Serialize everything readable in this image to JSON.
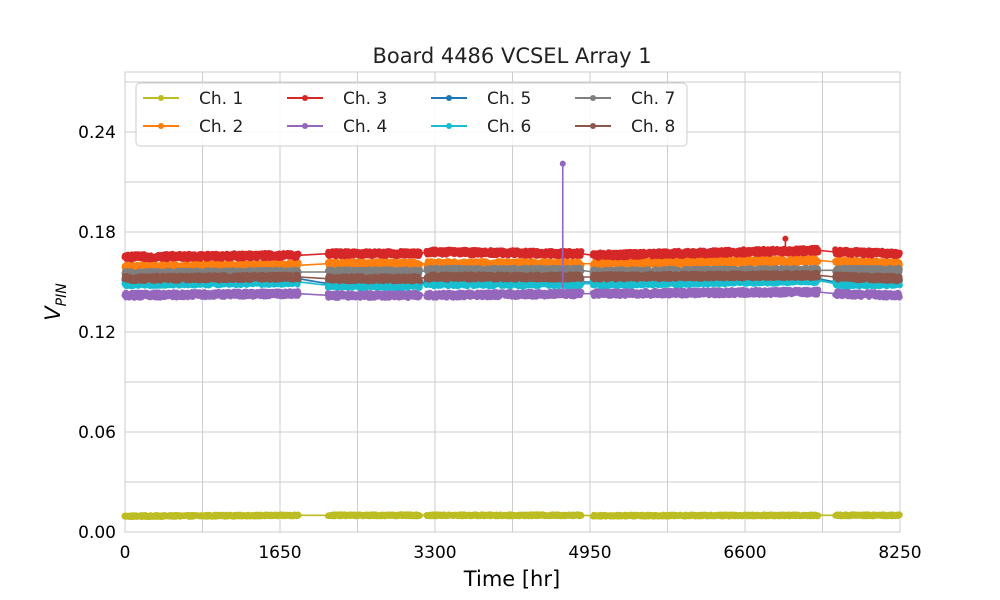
{
  "chart_data": {
    "type": "line",
    "title": "Board 4486 VCSEL Array 1",
    "xlabel": "Time [hr]",
    "ylabel": "V",
    "ylabel_subscript": "PIN",
    "xlim": [
      0,
      8250
    ],
    "ylim": [
      0,
      0.276
    ],
    "xticks": [
      0,
      1650,
      3300,
      4950,
      6600,
      8250
    ],
    "xtick_labels": [
      "0",
      "1650",
      "3300",
      "4950",
      "6600",
      "8250"
    ],
    "yticks": [
      0,
      0.06,
      0.12,
      0.18,
      0.24
    ],
    "ytick_labels": [
      "0.00",
      "0.06",
      "0.12",
      "0.18",
      "0.24"
    ],
    "grid": true,
    "legend_position": "top-left",
    "legend_columns": 4,
    "segments": [
      [
        0,
        1850
      ],
      [
        2160,
        3140
      ],
      [
        3210,
        4860
      ],
      [
        4980,
        7380
      ],
      [
        7560,
        8250
      ]
    ],
    "series": [
      {
        "name": "Ch. 1",
        "color": "#bcbd22",
        "x": [
          0,
          1850,
          2160,
          3140,
          3210,
          4860,
          4980,
          7380,
          7560,
          8250
        ],
        "y": [
          0.0095,
          0.01,
          0.01,
          0.01,
          0.01,
          0.01,
          0.0098,
          0.01,
          0.01,
          0.01
        ]
      },
      {
        "name": "Ch. 2",
        "color": "#ff7f0e",
        "x": [
          0,
          1850,
          2160,
          3140,
          3210,
          4860,
          4980,
          7380,
          7560,
          8250
        ],
        "y": [
          0.159,
          0.16,
          0.161,
          0.161,
          0.161,
          0.161,
          0.161,
          0.163,
          0.162,
          0.161
        ]
      },
      {
        "name": "Ch. 3",
        "color": "#d62728",
        "x": [
          0,
          1850,
          2160,
          3140,
          3210,
          4860,
          4980,
          7380,
          7560,
          8250
        ],
        "y": [
          0.165,
          0.166,
          0.167,
          0.167,
          0.168,
          0.167,
          0.166,
          0.169,
          0.168,
          0.167
        ]
      },
      {
        "name": "Ch. 4",
        "color": "#9467bd",
        "x": [
          0,
          1850,
          2160,
          3140,
          3210,
          4860,
          4980,
          7380,
          7560,
          8250
        ],
        "y": [
          0.142,
          0.143,
          0.142,
          0.142,
          0.142,
          0.143,
          0.143,
          0.144,
          0.143,
          0.142
        ]
      },
      {
        "name": "Ch. 5",
        "color": "#1f77b4",
        "x": [
          0,
          1850,
          2160,
          3140,
          3210,
          4860,
          4980,
          7380,
          7560,
          8250
        ],
        "y": [
          0.151,
          0.152,
          0.149,
          0.149,
          0.15,
          0.15,
          0.15,
          0.152,
          0.15,
          0.15
        ]
      },
      {
        "name": "Ch. 6",
        "color": "#17becf",
        "x": [
          0,
          1850,
          2160,
          3140,
          3210,
          4860,
          4980,
          7380,
          7560,
          8250
        ],
        "y": [
          0.149,
          0.15,
          0.148,
          0.148,
          0.149,
          0.149,
          0.149,
          0.151,
          0.149,
          0.149
        ]
      },
      {
        "name": "Ch. 7",
        "color": "#7f7f7f",
        "x": [
          0,
          1850,
          2160,
          3140,
          3210,
          4860,
          4980,
          7380,
          7560,
          8250
        ],
        "y": [
          0.155,
          0.156,
          0.156,
          0.156,
          0.157,
          0.157,
          0.156,
          0.157,
          0.157,
          0.157
        ]
      },
      {
        "name": "Ch. 8",
        "color": "#8c564b",
        "x": [
          0,
          1850,
          2160,
          3140,
          3210,
          4860,
          4980,
          7380,
          7560,
          8250
        ],
        "y": [
          0.152,
          0.153,
          0.152,
          0.152,
          0.153,
          0.153,
          0.153,
          0.154,
          0.153,
          0.152
        ]
      }
    ],
    "spikes": [
      {
        "series": "Ch. 4",
        "x": 4660,
        "y": 0.221
      },
      {
        "series": "Ch. 3",
        "x": 7030,
        "y": 0.176
      }
    ]
  }
}
